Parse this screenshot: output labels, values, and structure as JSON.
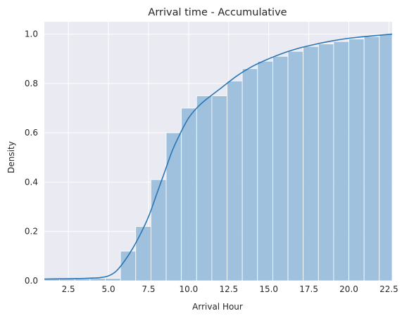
{
  "chart_data": {
    "type": "bar",
    "title": "Arrival time - Accumulative",
    "xlabel": "Arrival Hour",
    "ylabel": "Density",
    "xlim": [
      1.0,
      22.7
    ],
    "ylim": [
      0.0,
      1.05
    ],
    "x_ticks": [
      "2.5",
      "5.0",
      "7.5",
      "10.0",
      "12.5",
      "15.0",
      "17.5",
      "20.0",
      "22.5"
    ],
    "y_ticks": [
      "0.0",
      "0.2",
      "0.4",
      "0.6",
      "0.8",
      "1.0"
    ],
    "grid": true,
    "background": "#eaeaf2",
    "bar_color": "#9bbfdc",
    "line_color": "#2a75b4",
    "bins": [
      {
        "x0": 1.0,
        "x1": 1.95,
        "value": 0.007
      },
      {
        "x0": 1.95,
        "x1": 2.9,
        "value": 0.008
      },
      {
        "x0": 2.9,
        "x1": 3.85,
        "value": 0.009
      },
      {
        "x0": 3.85,
        "x1": 4.8,
        "value": 0.01
      },
      {
        "x0": 4.8,
        "x1": 5.75,
        "value": 0.01
      },
      {
        "x0": 5.75,
        "x1": 6.7,
        "value": 0.12
      },
      {
        "x0": 6.7,
        "x1": 7.65,
        "value": 0.22
      },
      {
        "x0": 7.65,
        "x1": 8.6,
        "value": 0.41
      },
      {
        "x0": 8.6,
        "x1": 9.55,
        "value": 0.6
      },
      {
        "x0": 9.55,
        "x1": 10.5,
        "value": 0.7
      },
      {
        "x0": 10.5,
        "x1": 11.45,
        "value": 0.75
      },
      {
        "x0": 11.45,
        "x1": 12.4,
        "value": 0.75
      },
      {
        "x0": 12.4,
        "x1": 13.35,
        "value": 0.81
      },
      {
        "x0": 13.35,
        "x1": 14.3,
        "value": 0.86
      },
      {
        "x0": 14.3,
        "x1": 15.25,
        "value": 0.89
      },
      {
        "x0": 15.25,
        "x1": 16.2,
        "value": 0.91
      },
      {
        "x0": 16.2,
        "x1": 17.15,
        "value": 0.93
      },
      {
        "x0": 17.15,
        "x1": 18.1,
        "value": 0.95
      },
      {
        "x0": 18.1,
        "x1": 19.05,
        "value": 0.96
      },
      {
        "x0": 19.05,
        "x1": 20.0,
        "value": 0.97
      },
      {
        "x0": 20.0,
        "x1": 20.95,
        "value": 0.98
      },
      {
        "x0": 20.95,
        "x1": 21.9,
        "value": 0.99
      },
      {
        "x0": 21.9,
        "x1": 22.7,
        "value": 1.0
      }
    ],
    "cdf_line": {
      "x": [
        1.0,
        2.0,
        3.0,
        4.0,
        4.5,
        5.0,
        5.5,
        6.0,
        6.5,
        7.0,
        7.5,
        8.0,
        8.5,
        9.0,
        9.5,
        10.0,
        10.5,
        11.0,
        12.0,
        13.0,
        14.0,
        15.0,
        16.0,
        17.0,
        18.0,
        19.0,
        20.0,
        21.0,
        22.0,
        22.7
      ],
      "y": [
        0.007,
        0.008,
        0.009,
        0.011,
        0.013,
        0.02,
        0.04,
        0.08,
        0.13,
        0.19,
        0.26,
        0.35,
        0.44,
        0.53,
        0.6,
        0.66,
        0.7,
        0.73,
        0.78,
        0.83,
        0.87,
        0.9,
        0.925,
        0.945,
        0.96,
        0.973,
        0.983,
        0.99,
        0.996,
        1.0
      ]
    }
  }
}
